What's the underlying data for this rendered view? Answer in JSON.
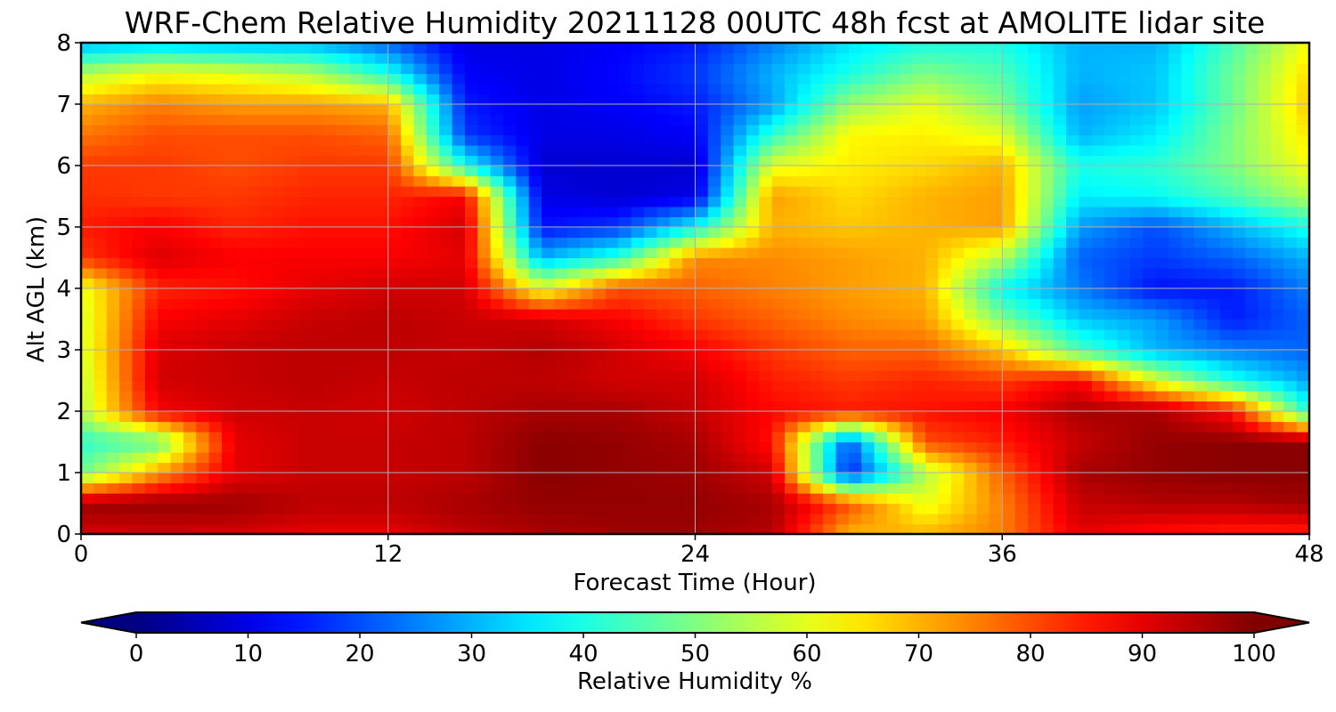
{
  "chart_data": {
    "type": "heatmap",
    "title": "WRF-Chem Relative Humidity 20211128 00UTC 48h fcst at AMOLITE lidar site",
    "xlabel": "Forecast Time (Hour)",
    "ylabel": "Alt AGL (km)",
    "xlim": [
      0,
      48
    ],
    "ylim": [
      0,
      8
    ],
    "x_ticks": [
      "0",
      "12",
      "24",
      "36",
      "48"
    ],
    "y_ticks": [
      "0",
      "1",
      "2",
      "3",
      "4",
      "5",
      "6",
      "7",
      "8"
    ],
    "grid": true,
    "colormap": "jet",
    "colorbar": {
      "label": "Relative Humidity %",
      "range": [
        0,
        100
      ],
      "ticks": [
        "0",
        "10",
        "20",
        "30",
        "40",
        "50",
        "60",
        "70",
        "80",
        "90",
        "100"
      ],
      "extend": "both",
      "orientation": "horizontal"
    },
    "x": [
      0,
      3,
      6,
      9,
      12,
      15,
      18,
      21,
      24,
      27,
      30,
      33,
      36,
      39,
      42,
      45,
      48
    ],
    "y": [
      0,
      0.5,
      1,
      1.5,
      2,
      2.5,
      3,
      3.5,
      4,
      4.5,
      5,
      5.5,
      6,
      6.5,
      7,
      7.5,
      8
    ],
    "z": [
      [
        92,
        92,
        92,
        90,
        90,
        94,
        96,
        97,
        97,
        95,
        70,
        70,
        75,
        90,
        86,
        84,
        84
      ],
      [
        97,
        98,
        97,
        94,
        94,
        96,
        98,
        98,
        98,
        96,
        80,
        60,
        75,
        93,
        95,
        95,
        97
      ],
      [
        48,
        72,
        90,
        93,
        93,
        94,
        99,
        98,
        97,
        92,
        15,
        55,
        78,
        96,
        98,
        99,
        99
      ],
      [
        42,
        47,
        90,
        93,
        93,
        94,
        99,
        98,
        96,
        86,
        20,
        80,
        85,
        93,
        98,
        99,
        99
      ],
      [
        55,
        88,
        92,
        93,
        92,
        94,
        96,
        96,
        93,
        87,
        85,
        86,
        88,
        96,
        96,
        86,
        40
      ],
      [
        56,
        92,
        93,
        94,
        93,
        94,
        94,
        92,
        92,
        85,
        82,
        84,
        82,
        88,
        60,
        40,
        28
      ],
      [
        58,
        91,
        93,
        94,
        94,
        93,
        95,
        92,
        88,
        82,
        78,
        78,
        68,
        45,
        30,
        25,
        22
      ],
      [
        58,
        88,
        90,
        93,
        94,
        93,
        92,
        88,
        82,
        78,
        74,
        72,
        50,
        32,
        28,
        15,
        22
      ],
      [
        60,
        84,
        86,
        90,
        92,
        92,
        60,
        80,
        78,
        75,
        72,
        70,
        38,
        25,
        14,
        15,
        25
      ],
      [
        82,
        91,
        88,
        88,
        88,
        90,
        30,
        42,
        74,
        74,
        72,
        70,
        55,
        22,
        18,
        22,
        30
      ],
      [
        85,
        88,
        84,
        86,
        86,
        92,
        14,
        18,
        38,
        70,
        68,
        70,
        72,
        28,
        20,
        30,
        40
      ],
      [
        83,
        82,
        82,
        84,
        84,
        88,
        10,
        8,
        10,
        72,
        66,
        70,
        72,
        36,
        38,
        45,
        55
      ],
      [
        82,
        82,
        80,
        82,
        82,
        40,
        8,
        8,
        8,
        60,
        64,
        66,
        70,
        40,
        42,
        50,
        62
      ],
      [
        76,
        80,
        80,
        80,
        78,
        18,
        10,
        10,
        12,
        42,
        63,
        64,
        60,
        30,
        36,
        50,
        65
      ],
      [
        70,
        75,
        72,
        72,
        70,
        15,
        10,
        12,
        15,
        28,
        52,
        60,
        50,
        28,
        32,
        48,
        68
      ],
      [
        55,
        62,
        60,
        55,
        40,
        12,
        10,
        13,
        18,
        30,
        40,
        50,
        45,
        30,
        32,
        48,
        66
      ],
      [
        30,
        32,
        30,
        30,
        22,
        10,
        10,
        12,
        15,
        25,
        35,
        40,
        40,
        30,
        30,
        45,
        62
      ]
    ]
  }
}
